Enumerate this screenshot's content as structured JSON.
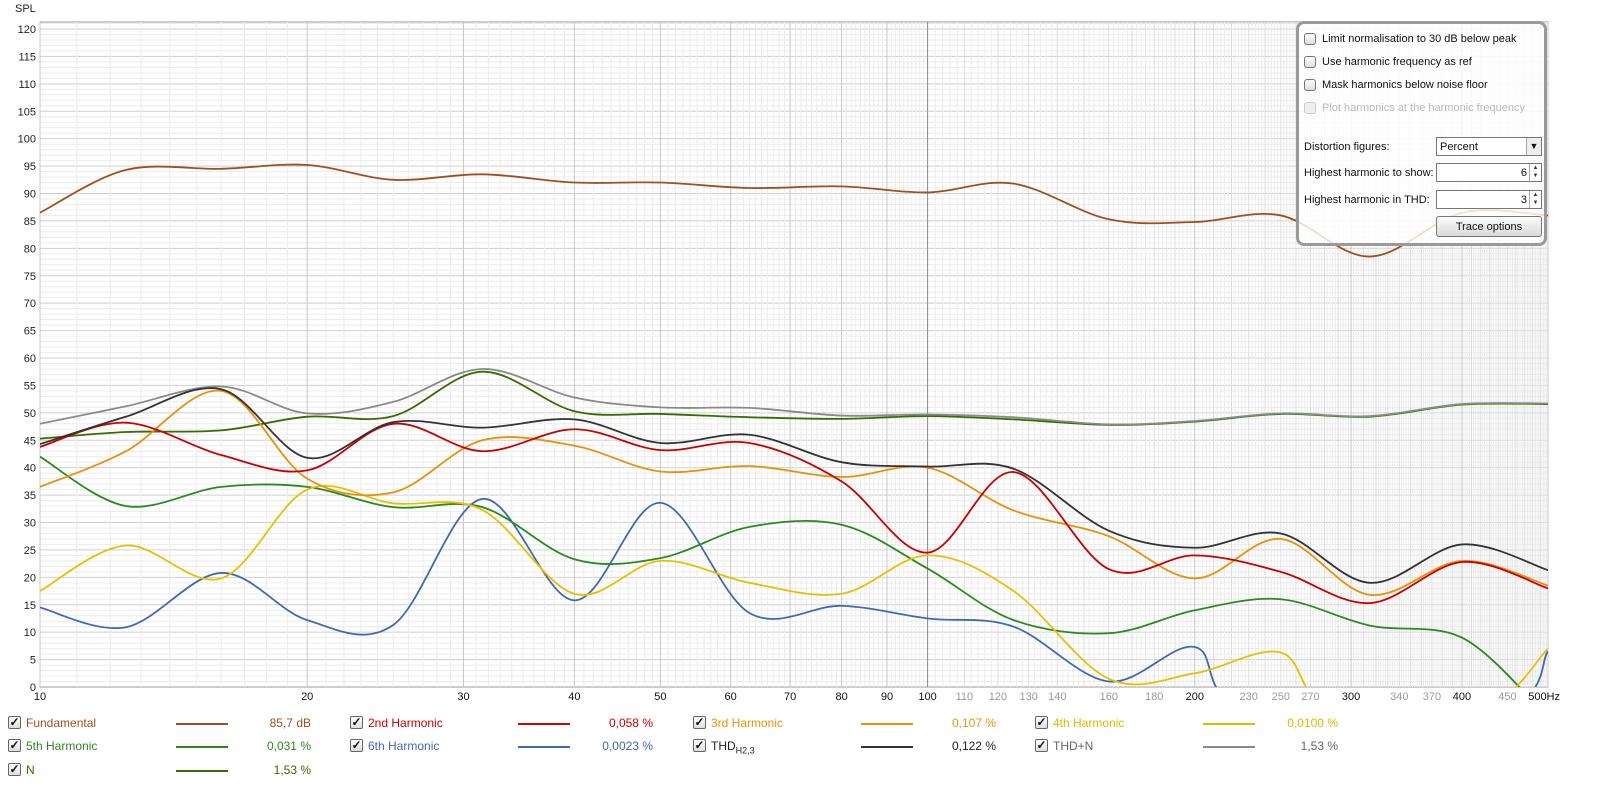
{
  "chart_data": {
    "type": "line",
    "ylabel": "SPL",
    "xunit": "Hz",
    "xscale": "log",
    "xlim": [
      10,
      500
    ],
    "ylim": [
      0,
      121
    ],
    "yticks": [
      0,
      5,
      10,
      15,
      20,
      25,
      30,
      35,
      40,
      45,
      50,
      55,
      60,
      65,
      70,
      75,
      80,
      85,
      90,
      95,
      100,
      105,
      110,
      115,
      120
    ],
    "xticks_major": [
      "10",
      "20",
      "30",
      "40",
      "50",
      "60",
      "70",
      "80",
      "90",
      "100",
      "200",
      "300",
      "400",
      "500Hz"
    ],
    "xticks_minor": [
      "110",
      "120",
      "130",
      "140",
      "160",
      "180",
      "230",
      "250",
      "270",
      "340",
      "370",
      "450"
    ],
    "grid": true,
    "series": [
      {
        "name": "N",
        "color": "#3a6b00",
        "points": [
          [
            10,
            45.3
          ],
          [
            12.5,
            46.5
          ],
          [
            16,
            46.8
          ],
          [
            20,
            49.3
          ],
          [
            25,
            49.4
          ],
          [
            31.5,
            57.5
          ],
          [
            40,
            50.3
          ],
          [
            50,
            49.8
          ],
          [
            63,
            49.2
          ],
          [
            80,
            48.9
          ],
          [
            100,
            49.4
          ],
          [
            125,
            48.8
          ],
          [
            160,
            47.8
          ],
          [
            200,
            48.4
          ],
          [
            250,
            49.8
          ],
          [
            315,
            49.3
          ],
          [
            400,
            51.5
          ],
          [
            500,
            51.6
          ]
        ]
      },
      {
        "name": "THD+N",
        "color": "#8a8a8a",
        "points": [
          [
            10,
            48
          ],
          [
            12.5,
            51.2
          ],
          [
            16,
            54.8
          ],
          [
            20,
            49.9
          ],
          [
            25,
            52
          ],
          [
            31.5,
            58
          ],
          [
            40,
            52.8
          ],
          [
            50,
            51
          ],
          [
            63,
            50.9
          ],
          [
            80,
            49.5
          ],
          [
            100,
            49.7
          ],
          [
            125,
            49.2
          ],
          [
            160,
            47.9
          ],
          [
            200,
            48.5
          ],
          [
            250,
            49.9
          ],
          [
            315,
            49.4
          ],
          [
            400,
            51.6
          ],
          [
            500,
            51.7
          ]
        ]
      },
      {
        "name": "Fundamental",
        "color": "#a0501e",
        "points": [
          [
            10,
            86.5
          ],
          [
            12.5,
            94.3
          ],
          [
            16,
            94.5
          ],
          [
            20,
            95.2
          ],
          [
            25,
            92.5
          ],
          [
            31.5,
            93.5
          ],
          [
            40,
            92
          ],
          [
            50,
            92
          ],
          [
            63,
            91
          ],
          [
            80,
            91.3
          ],
          [
            100,
            90.2
          ],
          [
            125,
            91.8
          ],
          [
            160,
            85.3
          ],
          [
            200,
            84.8
          ],
          [
            250,
            86
          ],
          [
            315,
            78.5
          ],
          [
            400,
            86.5
          ],
          [
            500,
            86
          ]
        ]
      },
      {
        "name": "6th Harmonic",
        "color": "#4169b0",
        "points": [
          [
            10,
            14.5
          ],
          [
            12.5,
            10.9
          ],
          [
            16,
            20.8
          ],
          [
            20,
            12.2
          ],
          [
            25,
            11.3
          ],
          [
            31.5,
            34.3
          ],
          [
            40,
            15.8
          ],
          [
            50,
            33.6
          ],
          [
            63,
            13.5
          ],
          [
            80,
            14.8
          ],
          [
            100,
            12.5
          ],
          [
            125,
            11
          ],
          [
            160,
            1
          ],
          [
            200,
            7.3
          ],
          [
            230,
            -4
          ],
          [
            440,
            -4
          ],
          [
            500,
            6.5
          ]
        ]
      },
      {
        "name": "5th Harmonic",
        "color": "#2a8a1e",
        "points": [
          [
            10,
            42
          ],
          [
            12.5,
            33
          ],
          [
            16,
            36.5
          ],
          [
            20,
            36.5
          ],
          [
            25,
            32.8
          ],
          [
            31.5,
            32.8
          ],
          [
            40,
            23.3
          ],
          [
            50,
            23.5
          ],
          [
            63,
            29.2
          ],
          [
            80,
            29.6
          ],
          [
            100,
            21.6
          ],
          [
            125,
            12.2
          ],
          [
            160,
            9.8
          ],
          [
            200,
            14
          ],
          [
            250,
            16
          ],
          [
            315,
            11.2
          ],
          [
            400,
            9
          ],
          [
            490,
            -4
          ]
        ]
      },
      {
        "name": "4th Harmonic",
        "color": "#e8c000",
        "points": [
          [
            10,
            17.5
          ],
          [
            12.5,
            25.8
          ],
          [
            16,
            19.8
          ],
          [
            20,
            36
          ],
          [
            25,
            33.5
          ],
          [
            31.5,
            32.3
          ],
          [
            40,
            17
          ],
          [
            50,
            23
          ],
          [
            63,
            19
          ],
          [
            80,
            17
          ],
          [
            100,
            24
          ],
          [
            125,
            17.5
          ],
          [
            160,
            1.5
          ],
          [
            200,
            2.5
          ],
          [
            250,
            6.3
          ],
          [
            285,
            -4
          ],
          [
            420,
            -4
          ],
          [
            500,
            7
          ]
        ]
      },
      {
        "name": "3rd Harmonic",
        "color": "#e8920a",
        "points": [
          [
            10,
            36.5
          ],
          [
            12.5,
            43
          ],
          [
            16,
            54
          ],
          [
            20,
            38
          ],
          [
            25,
            35.5
          ],
          [
            31.5,
            45
          ],
          [
            40,
            44
          ],
          [
            50,
            39.3
          ],
          [
            63,
            40.3
          ],
          [
            80,
            38.3
          ],
          [
            100,
            40
          ],
          [
            125,
            32.2
          ],
          [
            160,
            27.5
          ],
          [
            200,
            19.8
          ],
          [
            250,
            27
          ],
          [
            315,
            16.8
          ],
          [
            400,
            23
          ],
          [
            500,
            18.5
          ]
        ]
      },
      {
        "name": "2nd Harmonic",
        "color": "#cc0000",
        "points": [
          [
            10,
            43.8
          ],
          [
            12.5,
            48.2
          ],
          [
            16,
            42.3
          ],
          [
            20,
            39.5
          ],
          [
            25,
            48
          ],
          [
            31.5,
            43
          ],
          [
            40,
            47
          ],
          [
            50,
            43.2
          ],
          [
            63,
            44.5
          ],
          [
            80,
            37.5
          ],
          [
            100,
            24.5
          ],
          [
            125,
            39.2
          ],
          [
            160,
            21.5
          ],
          [
            200,
            24
          ],
          [
            250,
            21
          ],
          [
            315,
            15.3
          ],
          [
            400,
            22.8
          ],
          [
            500,
            18
          ]
        ]
      },
      {
        "name": "THD H2,3",
        "color": "#333333",
        "points": [
          [
            10,
            44.3
          ],
          [
            12.5,
            49.3
          ],
          [
            16,
            54.3
          ],
          [
            20,
            41.8
          ],
          [
            25,
            48.3
          ],
          [
            31.5,
            47.3
          ],
          [
            40,
            48.8
          ],
          [
            50,
            44.5
          ],
          [
            63,
            46
          ],
          [
            80,
            41
          ],
          [
            100,
            40.2
          ],
          [
            125,
            39.8
          ],
          [
            160,
            28.5
          ],
          [
            200,
            25.4
          ],
          [
            250,
            28
          ],
          [
            315,
            19
          ],
          [
            400,
            26
          ],
          [
            500,
            21.3
          ]
        ]
      }
    ]
  },
  "options": {
    "checkboxes": [
      {
        "label": "Limit normalisation to 30 dB below peak",
        "checked": false,
        "enabled": true
      },
      {
        "label": "Use harmonic frequency as ref",
        "checked": false,
        "enabled": true
      },
      {
        "label": "Mask harmonics below noise floor",
        "checked": false,
        "enabled": true
      },
      {
        "label": "Plot harmonics at the harmonic frequency",
        "checked": false,
        "enabled": false
      }
    ],
    "distortion_label": "Distortion figures:",
    "distortion_value": "Percent",
    "highest_show_label": "Highest harmonic to show:",
    "highest_show_value": "6",
    "highest_thd_label": "Highest harmonic in THD:",
    "highest_thd_value": "3",
    "trace_options": "Trace options"
  },
  "legend": [
    {
      "name": "Fundamental",
      "value": "85,7 dB",
      "color": "#a0501e"
    },
    {
      "name": "2nd Harmonic",
      "value": "0,058 %",
      "color": "#cc0000"
    },
    {
      "name": "3rd Harmonic",
      "value": "0,107 %",
      "color": "#e8920a"
    },
    {
      "name": "4th Harmonic",
      "value": "0,0100 %",
      "color": "#e0b800"
    },
    {
      "name": "5th Harmonic",
      "value": "0,031 %",
      "color": "#2a8a1e"
    },
    {
      "name": "6th Harmonic",
      "value": "0,0023 %",
      "color": "#4169b0"
    },
    {
      "name": "THD",
      "sub": "H2,3",
      "value": "0,122 %",
      "color": "#333333"
    },
    {
      "name": "THD+N",
      "value": "1,53 %",
      "color": "#8a8a8a"
    },
    {
      "name": "N",
      "value": "1,53 %",
      "color": "#3a6b00"
    }
  ],
  "check_mark": "✓",
  "spin_up": "▲",
  "spin_down": "▼",
  "dropdown_arrow": "▼"
}
